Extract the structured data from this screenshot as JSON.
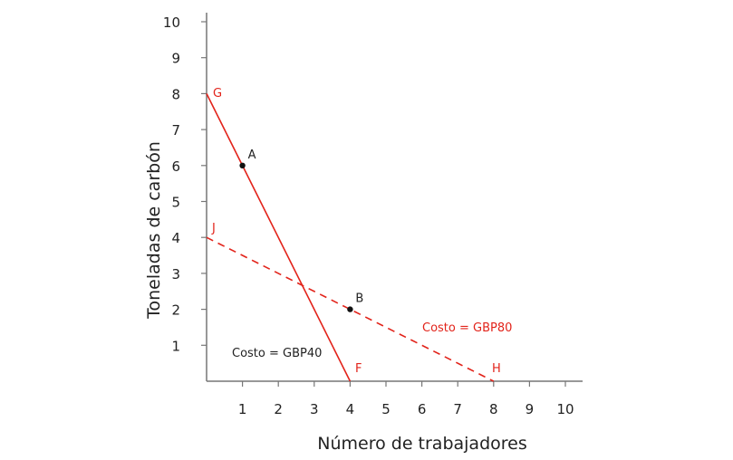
{
  "chart_data": {
    "type": "line",
    "xlabel": "Número de trabajadores",
    "ylabel": "Toneladas de carbón",
    "xlim": [
      0,
      10
    ],
    "ylim": [
      0,
      10
    ],
    "xticks": [
      "1",
      "2",
      "3",
      "4",
      "5",
      "6",
      "7",
      "8",
      "9",
      "10"
    ],
    "yticks": [
      "1",
      "2",
      "3",
      "4",
      "5",
      "6",
      "7",
      "8",
      "9",
      "10"
    ],
    "grid": false,
    "colors": {
      "line": "#e2231a",
      "point": "#111111",
      "axis": "#777777"
    },
    "series": [
      {
        "x": [
          0,
          4
        ],
        "y": [
          8,
          0
        ],
        "style": "solid",
        "start_label": "G",
        "end_label": "F",
        "annotation": "Costo = GBP40"
      },
      {
        "x": [
          0,
          8
        ],
        "y": [
          4,
          0
        ],
        "style": "dashed",
        "start_label": "J",
        "end_label": "H",
        "annotation": "Costo = GBP80"
      }
    ],
    "points": [
      {
        "label": "A",
        "x": 1,
        "y": 6
      },
      {
        "label": "B",
        "x": 4,
        "y": 2
      }
    ]
  }
}
